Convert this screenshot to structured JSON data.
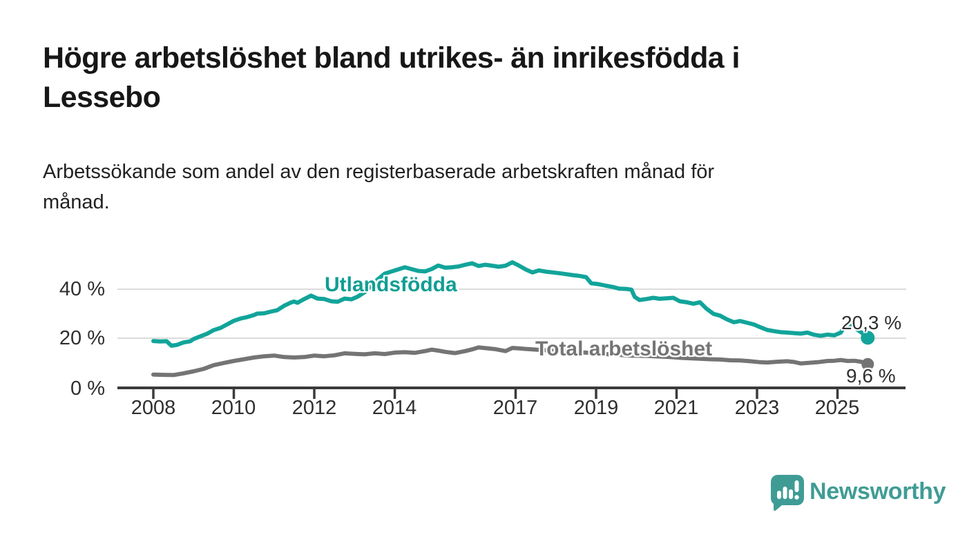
{
  "title": "Högre arbetslöshet bland utrikes- än inrikesfödda i Lessebo",
  "title_lines": [
    "Högre arbetslöshet bland utrikes- än inrikesfödda i",
    "Lessebo"
  ],
  "subtitle": "Arbetssökande som andel av den registerbaserade arbetskraften månad för månad.",
  "subtitle_lines": [
    "Arbetssökande som andel av den registerbaserade arbetskraften månad för",
    "månad."
  ],
  "branding": {
    "name": "Newsworthy",
    "logo_icon": "speech-bubble-bar-chart-icon",
    "color": "#3f9c95"
  },
  "colors": {
    "foreign_born_line": "#12a49a",
    "foreign_born_label": "#109e94",
    "total_line": "#747474",
    "total_label": "#757575",
    "gridline": "#dcdcdc",
    "axis": "#3b3b3b",
    "text": "#2f2f2f"
  },
  "chart_data": {
    "type": "line",
    "unit": "%",
    "grid": "horizontal-only",
    "legend_position": "inline-labels",
    "xlim": [
      2008,
      2025.75
    ],
    "ylim": [
      0,
      56
    ],
    "y_ticks": [
      {
        "label": "40 %",
        "value": 40
      },
      {
        "label": "20 %",
        "value": 20
      },
      {
        "label": "0 %",
        "value": 0
      }
    ],
    "x_ticks": [
      {
        "label": "2008",
        "year": 2008
      },
      {
        "label": "2010",
        "year": 2010
      },
      {
        "label": "2012",
        "year": 2012
      },
      {
        "label": "2014",
        "year": 2014
      },
      {
        "label": "2017",
        "year": 2017
      },
      {
        "label": "2019",
        "year": 2019
      },
      {
        "label": "2021",
        "year": 2021
      },
      {
        "label": "2023",
        "year": 2023
      },
      {
        "label": "2025",
        "year": 2025
      }
    ],
    "series": [
      {
        "name": "Utlandsfödda",
        "color": "#12a49a",
        "label_color": "#109e94",
        "end_label": "20,3 %",
        "end_value": 20.3,
        "points": [
          [
            2008.0,
            19.0
          ],
          [
            2008.17,
            18.8
          ],
          [
            2008.33,
            18.9
          ],
          [
            2008.45,
            17.1
          ],
          [
            2008.58,
            17.4
          ],
          [
            2008.75,
            18.4
          ],
          [
            2008.92,
            18.9
          ],
          [
            2009.0,
            19.8
          ],
          [
            2009.17,
            20.9
          ],
          [
            2009.33,
            21.9
          ],
          [
            2009.5,
            23.4
          ],
          [
            2009.67,
            24.3
          ],
          [
            2009.83,
            25.7
          ],
          [
            2010.0,
            27.2
          ],
          [
            2010.17,
            28.1
          ],
          [
            2010.33,
            28.7
          ],
          [
            2010.5,
            29.5
          ],
          [
            2010.58,
            30.1
          ],
          [
            2010.75,
            30.2
          ],
          [
            2010.92,
            30.9
          ],
          [
            2011.08,
            31.5
          ],
          [
            2011.25,
            33.3
          ],
          [
            2011.42,
            34.6
          ],
          [
            2011.5,
            35.0
          ],
          [
            2011.58,
            34.5
          ],
          [
            2011.75,
            36.0
          ],
          [
            2011.92,
            37.4
          ],
          [
            2012.08,
            36.2
          ],
          [
            2012.25,
            36.0
          ],
          [
            2012.42,
            35.1
          ],
          [
            2012.58,
            34.9
          ],
          [
            2012.75,
            36.2
          ],
          [
            2012.92,
            35.9
          ],
          [
            2013.08,
            37.0
          ],
          [
            2013.25,
            38.8
          ],
          [
            2013.42,
            41.5
          ],
          [
            2013.58,
            44.0
          ],
          [
            2013.75,
            46.3
          ],
          [
            2013.92,
            47.2
          ],
          [
            2014.08,
            48.0
          ],
          [
            2014.25,
            48.9
          ],
          [
            2014.42,
            48.1
          ],
          [
            2014.58,
            47.4
          ],
          [
            2014.75,
            47.2
          ],
          [
            2014.92,
            48.2
          ],
          [
            2015.08,
            49.6
          ],
          [
            2015.25,
            48.7
          ],
          [
            2015.42,
            48.9
          ],
          [
            2015.58,
            49.2
          ],
          [
            2015.75,
            49.9
          ],
          [
            2015.92,
            50.5
          ],
          [
            2016.08,
            49.4
          ],
          [
            2016.25,
            49.9
          ],
          [
            2016.42,
            49.5
          ],
          [
            2016.58,
            49.1
          ],
          [
            2016.75,
            49.5
          ],
          [
            2016.92,
            50.9
          ],
          [
            2017.08,
            49.6
          ],
          [
            2017.25,
            48.0
          ],
          [
            2017.42,
            46.8
          ],
          [
            2017.58,
            47.6
          ],
          [
            2017.75,
            47.1
          ],
          [
            2017.92,
            46.8
          ],
          [
            2018.08,
            46.5
          ],
          [
            2018.25,
            46.1
          ],
          [
            2018.42,
            45.7
          ],
          [
            2018.58,
            45.4
          ],
          [
            2018.75,
            44.9
          ],
          [
            2018.88,
            42.4
          ],
          [
            2019.08,
            42.0
          ],
          [
            2019.25,
            41.4
          ],
          [
            2019.42,
            40.9
          ],
          [
            2019.58,
            40.2
          ],
          [
            2019.75,
            40.1
          ],
          [
            2019.88,
            39.8
          ],
          [
            2019.96,
            36.9
          ],
          [
            2020.08,
            35.6
          ],
          [
            2020.25,
            36.0
          ],
          [
            2020.42,
            36.5
          ],
          [
            2020.58,
            36.1
          ],
          [
            2020.75,
            36.3
          ],
          [
            2020.92,
            36.5
          ],
          [
            2021.08,
            35.1
          ],
          [
            2021.25,
            34.7
          ],
          [
            2021.42,
            34.1
          ],
          [
            2021.58,
            34.7
          ],
          [
            2021.75,
            32.0
          ],
          [
            2021.92,
            30.0
          ],
          [
            2022.08,
            29.3
          ],
          [
            2022.25,
            27.8
          ],
          [
            2022.42,
            26.6
          ],
          [
            2022.58,
            27.1
          ],
          [
            2022.75,
            26.4
          ],
          [
            2022.92,
            25.7
          ],
          [
            2023.08,
            24.6
          ],
          [
            2023.25,
            23.5
          ],
          [
            2023.42,
            23.0
          ],
          [
            2023.58,
            22.6
          ],
          [
            2023.75,
            22.4
          ],
          [
            2023.92,
            22.2
          ],
          [
            2024.08,
            22.0
          ],
          [
            2024.25,
            22.4
          ],
          [
            2024.42,
            21.5
          ],
          [
            2024.58,
            21.1
          ],
          [
            2024.75,
            21.6
          ],
          [
            2024.92,
            21.3
          ],
          [
            2025.08,
            22.4
          ],
          [
            2025.17,
            24.9
          ],
          [
            2025.33,
            25.7
          ],
          [
            2025.42,
            24.4
          ],
          [
            2025.58,
            22.6
          ],
          [
            2025.75,
            20.3
          ]
        ]
      },
      {
        "name": "Total arbetslöshet",
        "color": "#747474",
        "label_color": "#757575",
        "end_label": "9,6 %",
        "end_value": 9.6,
        "points": [
          [
            2008.0,
            5.4
          ],
          [
            2008.25,
            5.3
          ],
          [
            2008.5,
            5.2
          ],
          [
            2008.75,
            5.9
          ],
          [
            2009.0,
            6.7
          ],
          [
            2009.25,
            7.7
          ],
          [
            2009.5,
            9.2
          ],
          [
            2009.75,
            10.1
          ],
          [
            2010.0,
            10.9
          ],
          [
            2010.25,
            11.6
          ],
          [
            2010.5,
            12.3
          ],
          [
            2010.75,
            12.8
          ],
          [
            2011.0,
            13.1
          ],
          [
            2011.25,
            12.5
          ],
          [
            2011.5,
            12.3
          ],
          [
            2011.75,
            12.5
          ],
          [
            2012.0,
            13.1
          ],
          [
            2012.25,
            12.8
          ],
          [
            2012.5,
            13.2
          ],
          [
            2012.75,
            14.0
          ],
          [
            2013.0,
            13.8
          ],
          [
            2013.25,
            13.6
          ],
          [
            2013.5,
            14.0
          ],
          [
            2013.75,
            13.7
          ],
          [
            2014.0,
            14.3
          ],
          [
            2014.25,
            14.5
          ],
          [
            2014.5,
            14.2
          ],
          [
            2014.75,
            14.9
          ],
          [
            2014.92,
            15.5
          ],
          [
            2015.08,
            15.1
          ],
          [
            2015.25,
            14.6
          ],
          [
            2015.5,
            14.1
          ],
          [
            2015.75,
            14.9
          ],
          [
            2015.92,
            15.6
          ],
          [
            2016.08,
            16.4
          ],
          [
            2016.25,
            16.1
          ],
          [
            2016.5,
            15.7
          ],
          [
            2016.75,
            14.9
          ],
          [
            2016.92,
            16.2
          ],
          [
            2017.08,
            16.0
          ],
          [
            2017.33,
            15.7
          ],
          [
            2017.58,
            15.4
          ],
          [
            2017.83,
            15.2
          ],
          [
            2018.08,
            15.0
          ],
          [
            2018.33,
            14.7
          ],
          [
            2018.58,
            14.5
          ],
          [
            2018.83,
            14.2
          ],
          [
            2019.08,
            13.9
          ],
          [
            2019.33,
            13.6
          ],
          [
            2019.58,
            13.4
          ],
          [
            2019.83,
            13.1
          ],
          [
            2020.08,
            13.0
          ],
          [
            2020.33,
            12.9
          ],
          [
            2020.58,
            12.7
          ],
          [
            2020.83,
            12.5
          ],
          [
            2021.08,
            12.2
          ],
          [
            2021.33,
            12.0
          ],
          [
            2021.58,
            11.8
          ],
          [
            2021.83,
            11.6
          ],
          [
            2022.08,
            11.5
          ],
          [
            2022.33,
            11.2
          ],
          [
            2022.58,
            11.1
          ],
          [
            2022.83,
            10.8
          ],
          [
            2023.08,
            10.4
          ],
          [
            2023.25,
            10.3
          ],
          [
            2023.5,
            10.6
          ],
          [
            2023.75,
            10.8
          ],
          [
            2023.92,
            10.5
          ],
          [
            2024.08,
            9.9
          ],
          [
            2024.25,
            10.1
          ],
          [
            2024.5,
            10.4
          ],
          [
            2024.75,
            10.9
          ],
          [
            2024.92,
            11.0
          ],
          [
            2025.08,
            11.3
          ],
          [
            2025.25,
            10.9
          ],
          [
            2025.42,
            11.0
          ],
          [
            2025.58,
            10.6
          ],
          [
            2025.75,
            9.6
          ]
        ]
      }
    ]
  }
}
